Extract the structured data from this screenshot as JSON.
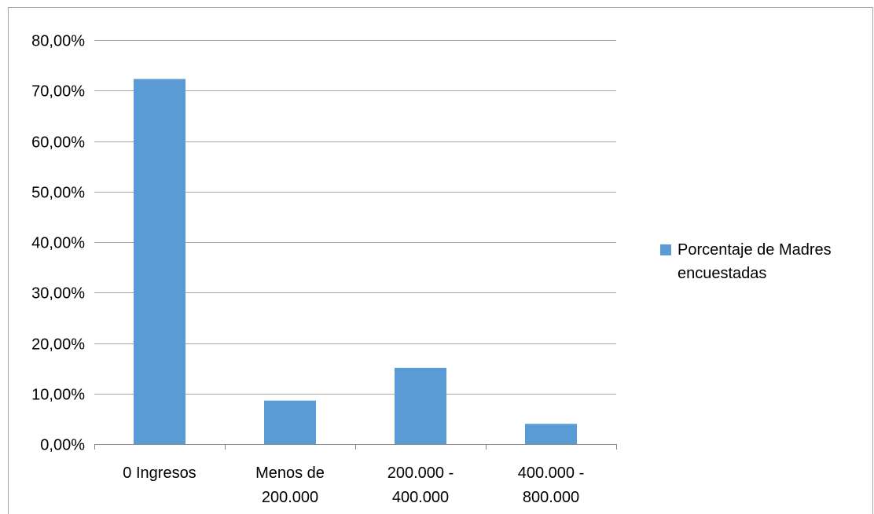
{
  "chart_data": {
    "type": "bar",
    "title": "",
    "xlabel": "",
    "ylabel": "",
    "categories": [
      [
        "0 Ingresos"
      ],
      [
        "Menos de",
        "200.000"
      ],
      [
        "200.000 -",
        "400.000"
      ],
      [
        "400.000 -",
        "800.000"
      ]
    ],
    "series": [
      {
        "name": "Porcentaje de Madres encuestadas",
        "values": [
          72.3,
          8.6,
          15.1,
          4.0
        ],
        "color": "#5b9bd5"
      }
    ],
    "ylim": [
      0,
      80
    ],
    "yticks": [
      {
        "value": 0,
        "label": "0,00%"
      },
      {
        "value": 10,
        "label": "10,00%"
      },
      {
        "value": 20,
        "label": "20,00%"
      },
      {
        "value": 30,
        "label": "30,00%"
      },
      {
        "value": 40,
        "label": "40,00%"
      },
      {
        "value": 50,
        "label": "50,00%"
      },
      {
        "value": 60,
        "label": "60,00%"
      },
      {
        "value": 70,
        "label": "70,00%"
      },
      {
        "value": 80,
        "label": "80,00%"
      }
    ],
    "grid": true,
    "gridline_color": "#a6a6a6",
    "legend_position": "right"
  }
}
